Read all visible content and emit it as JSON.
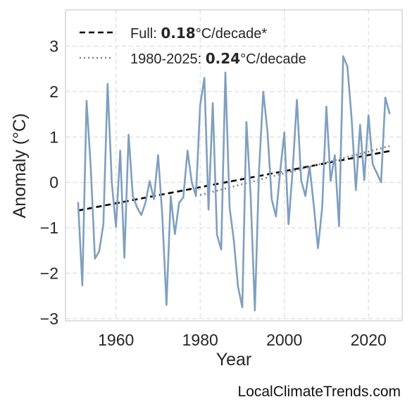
{
  "chart_data": {
    "type": "line",
    "title": "",
    "xlabel": "Year",
    "ylabel": "Anomaly (°C)",
    "xlim": [
      1948,
      2028
    ],
    "ylim": [
      -3.05,
      3.8
    ],
    "xticks": [
      1960,
      1980,
      2000,
      2020
    ],
    "yticks": [
      -3,
      -2,
      -1,
      0,
      1,
      2,
      3
    ],
    "ytick_labels": [
      "−3",
      "−2",
      "−1",
      "0",
      "1",
      "2",
      "3"
    ],
    "grid": true,
    "legend_position": "top-left",
    "colors": {
      "anomaly": "#7f9fbf",
      "full_trend": "#000000",
      "recent_trend": "#808080"
    },
    "series": [
      {
        "x": [
          1951,
          1952,
          1953,
          1954,
          1955,
          1956,
          1957,
          1958,
          1959,
          1960,
          1961,
          1962,
          1963,
          1964,
          1965,
          1966,
          1967,
          1968,
          1969,
          1970,
          1971,
          1972,
          1973,
          1974,
          1975,
          1976,
          1977,
          1978,
          1979,
          1980,
          1981,
          1982,
          1983,
          1984,
          1985,
          1986,
          1987,
          1988,
          1989,
          1990,
          1991,
          1992,
          1993,
          1994,
          1995,
          1996,
          1997,
          1998,
          1999,
          2000,
          2001,
          2002,
          2003,
          2004,
          2005,
          2006,
          2007,
          2008,
          2009,
          2010,
          2011,
          2012,
          2013,
          2014,
          2015,
          2016,
          2017,
          2018,
          2019,
          2020,
          2021,
          2022,
          2023,
          2024,
          2025
        ],
        "values": [
          -0.45,
          -2.27,
          1.8,
          0.35,
          -1.68,
          -1.52,
          -0.92,
          2.17,
          0.0,
          -0.98,
          0.7,
          -1.66,
          1.05,
          -0.3,
          -0.55,
          -0.72,
          -0.45,
          0.03,
          -0.37,
          0.6,
          -0.72,
          -2.7,
          -0.3,
          -1.14,
          -0.45,
          -0.33,
          0.7,
          0.0,
          -0.3,
          1.7,
          2.3,
          -0.6,
          1.75,
          -1.15,
          -1.48,
          2.42,
          -0.55,
          -1.28,
          -2.3,
          -2.75,
          1.33,
          -0.3,
          -2.82,
          0.26,
          2.0,
          1.12,
          -0.37,
          -0.75,
          0.22,
          1.1,
          -0.92,
          0.3,
          1.82,
          0.05,
          -0.3,
          0.35,
          -0.5,
          -1.45,
          -0.55,
          1.67,
          0.03,
          0.6,
          -0.97,
          2.78,
          2.55,
          1.4,
          -0.17,
          1.27,
          0.05,
          1.48,
          0.4,
          0.2,
          0.0,
          1.87,
          1.52
        ]
      }
    ],
    "trends": [
      {
        "x": [
          1951,
          2025
        ],
        "values": [
          -0.62,
          0.69
        ],
        "style": "dashed",
        "label_prefix": "Full: ",
        "rate": "0.18",
        "unit": "°C/decade*"
      },
      {
        "x": [
          1980,
          2025
        ],
        "values": [
          -0.28,
          0.8
        ],
        "style": "dotted",
        "label_prefix": "1980-2025: ",
        "rate": "0.24",
        "unit": "°C/decade"
      }
    ]
  },
  "credit": "LocalClimateTrends.com"
}
